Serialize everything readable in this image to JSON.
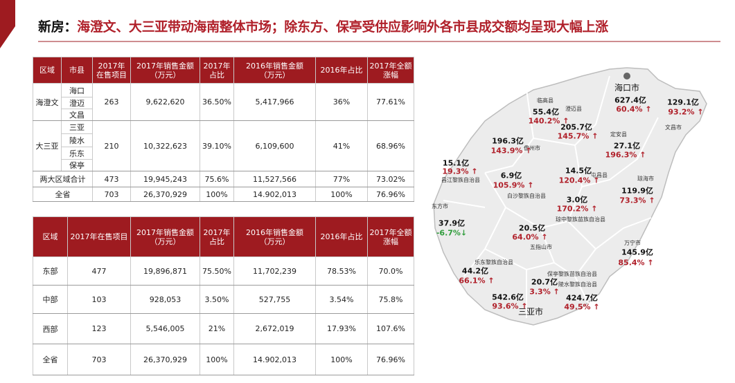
{
  "title": {
    "prefix": "新房：",
    "main": "海澄文、大三亚带动海南整体市场；除东方、保亭受供应影响外各市县成交额均呈现大幅上涨"
  },
  "table1": {
    "headers": [
      "区域",
      "市县",
      "2017年\n在售项目",
      "2017年销售金额\n（万元）",
      "2017年\n占比",
      "2016年销售金额\n（万元）",
      "2016年占比",
      "2017年全额\n涨幅"
    ],
    "groups": [
      {
        "region": "海澄文",
        "cities": [
          "海口",
          "澄迈",
          "文昌"
        ],
        "cells": [
          "263",
          "9,622,620",
          "36.50%",
          "5,417,966",
          "36%",
          "77.61%"
        ]
      },
      {
        "region": "大三亚",
        "cities": [
          "三亚",
          "陵水",
          "乐东",
          "保亭"
        ],
        "cells": [
          "210",
          "10,322,623",
          "39.10%",
          "6,109,600",
          "41%",
          "68.96%"
        ]
      }
    ],
    "totals": [
      {
        "label": "两大区域合计",
        "cells": [
          "473",
          "19,945,243",
          "75.6%",
          "11,527,566",
          "77%",
          "73.02%"
        ]
      },
      {
        "label": "全省",
        "cells": [
          "703",
          "26,370,929",
          "100%",
          "14.902,013",
          "100%",
          "76.96%"
        ]
      }
    ]
  },
  "table2": {
    "headers": [
      "区域",
      "2017年在售项目",
      "2017年销售金额\n（万元）",
      "2017年\n占比",
      "2016年销售金额\n（万元）",
      "2016年占比",
      "2017年全额\n涨幅"
    ],
    "rows": [
      [
        "东部",
        "477",
        "19,896,871",
        "75.50%",
        "11,702,239",
        "78.53%",
        "70.0%"
      ],
      [
        "中部",
        "103",
        "928,053",
        "3.50%",
        "527,755",
        "3.54%",
        "75.8%"
      ],
      [
        "西部",
        "123",
        "5,546,005",
        "21%",
        "2,672,019",
        "17.93%",
        "107.6%"
      ],
      [
        "全省",
        "703",
        "26,370,929",
        "100%",
        "14.902,013",
        "100%",
        "76.96%"
      ]
    ]
  },
  "map": {
    "areas": [
      {
        "name": "海口市",
        "amount": "627.4亿",
        "growth": "60.4% ↑",
        "color": "#b0202a"
      },
      {
        "name": "临高县",
        "amount": "55.4亿",
        "growth": "140.2% ↑",
        "color": "#b0202a"
      },
      {
        "name": "澄迈县",
        "amount": "205.7亿",
        "growth": "145.7% ↑",
        "color": "#b0202a"
      },
      {
        "name": "文昌市",
        "amount": "129.1亿",
        "growth": "93.2% ↑",
        "color": "#b0202a"
      },
      {
        "name": "定安县",
        "amount": "27.1亿",
        "growth": "196.3% ↑",
        "color": "#b0202a"
      },
      {
        "name": "儋州市",
        "amount": "196.3亿",
        "growth": "143.9% ↑",
        "color": "#b0202a"
      },
      {
        "name": "屯昌县",
        "amount": "14.5亿",
        "growth": "120.4% ↑",
        "color": "#b0202a"
      },
      {
        "name": "琼海市",
        "amount": "119.9亿",
        "growth": "73.3% ↑",
        "color": "#b0202a"
      },
      {
        "name": "昌江黎族自治县",
        "amount": "15.1亿",
        "growth": "19.3% ↑",
        "color": "#b0202a"
      },
      {
        "name": "白沙黎族自治县",
        "amount": "6.9亿",
        "growth": "105.9% ↑",
        "color": "#b0202a"
      },
      {
        "name": "琼中黎族苗族自治县",
        "amount": "3.0亿",
        "growth": "170.2% ↑",
        "color": "#b0202a"
      },
      {
        "name": "东方市",
        "amount": "37.9亿",
        "growth": "-6.7%↓",
        "color": "#2e9c3a"
      },
      {
        "name": "五指山市",
        "amount": "20.5亿",
        "growth": "64.0% ↑",
        "color": "#b0202a"
      },
      {
        "name": "万宁市",
        "amount": "145.9亿",
        "growth": "85.4% ↑",
        "color": "#b0202a"
      },
      {
        "name": "乐东黎族自治县",
        "amount": "44.2亿",
        "growth": "66.1% ↑",
        "color": "#b0202a"
      },
      {
        "name": "保亭黎族苗族自治县",
        "amount": "20.7亿",
        "growth": "3.3% ↑",
        "color": "#b0202a"
      },
      {
        "name": "陵水黎族自治县",
        "amount": "424.7亿",
        "growth": "49.5% ↑",
        "color": "#b0202a"
      },
      {
        "name": "三亚市",
        "amount": "542.6亿",
        "growth": "93.6% ↑",
        "color": "#b0202a"
      }
    ]
  }
}
